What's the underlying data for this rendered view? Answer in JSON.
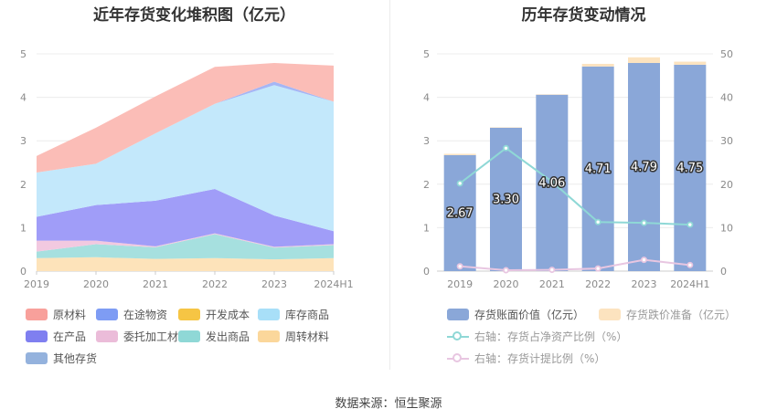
{
  "left_chart": {
    "title": "近年存货变化堆积图（亿元）",
    "legend": [
      {
        "label": "原材料",
        "color": "#f8a09b",
        "icon": "rect"
      },
      {
        "label": "在途物资",
        "color": "#7e9cf4",
        "icon": "rect"
      },
      {
        "label": "开发成本",
        "color": "#f6c544",
        "icon": "rect"
      },
      {
        "label": "库存商品",
        "color": "#a8dff8",
        "icon": "rect"
      },
      {
        "label": "在产品",
        "color": "#7f7ff0",
        "icon": "rect"
      },
      {
        "label": "委托加工材料",
        "color": "#ebbcd9",
        "icon": "rect"
      },
      {
        "label": "发出商品",
        "color": "#8fd8d6",
        "icon": "rect"
      },
      {
        "label": "周转材料",
        "color": "#fbd79b",
        "icon": "rect"
      },
      {
        "label": "其他存货",
        "color": "#94b2dd",
        "icon": "rect"
      }
    ]
  },
  "right_chart": {
    "title": "历年存货变动情况",
    "legend": [
      {
        "label": "存货账面价值（亿元）",
        "color": "#8aa7d8",
        "style": "rect"
      },
      {
        "label": "存货跌价准备（亿元）",
        "color": "#fce3bf",
        "style": "rect"
      },
      {
        "label": "右轴：存货占净资产比例（%）",
        "color": "#8fd8d6",
        "style": "line"
      },
      {
        "label": "右轴：存货计提比例（%）",
        "color": "#e8c6e1",
        "style": "line"
      }
    ]
  },
  "source": "数据来源：恒生聚源",
  "chart_data": [
    {
      "type": "area",
      "title": "近年存货变化堆积图（亿元）",
      "categories": [
        "2019",
        "2020",
        "2021",
        "2022",
        "2023",
        "2024H1"
      ],
      "ylim": [
        0,
        5
      ],
      "yticks": [
        0,
        1,
        2,
        3,
        4,
        5
      ],
      "stacked": true,
      "series": [
        {
          "name": "周转材料",
          "color": "#fde3ba",
          "values": [
            0.3,
            0.32,
            0.28,
            0.3,
            0.27,
            0.3
          ]
        },
        {
          "name": "发出商品",
          "color": "#a6e0df",
          "values": [
            0.15,
            0.3,
            0.27,
            0.55,
            0.27,
            0.3
          ]
        },
        {
          "name": "委托加工材料",
          "color": "#f2c9e0",
          "values": [
            0.25,
            0.08,
            0.02,
            0.02,
            0.02,
            0.02
          ]
        },
        {
          "name": "在产品",
          "color": "#a09df8",
          "values": [
            0.55,
            0.82,
            1.05,
            1.02,
            0.72,
            0.3
          ]
        },
        {
          "name": "库存商品",
          "color": "#c3e8fb",
          "values": [
            1.02,
            0.95,
            1.55,
            1.96,
            3.0,
            2.98
          ]
        },
        {
          "name": "在途物资",
          "color": "#a5b6f5",
          "values": [
            0.0,
            0.0,
            0.0,
            0.0,
            0.08,
            0.0
          ]
        },
        {
          "name": "原材料",
          "color": "#fbbdb7",
          "values": [
            0.38,
            0.83,
            0.85,
            0.85,
            0.43,
            0.83
          ]
        }
      ]
    },
    {
      "type": "bar",
      "title": "历年存货变动情况",
      "categories": [
        "2019",
        "2020",
        "2021",
        "2022",
        "2023",
        "2024H1"
      ],
      "ylim": [
        0,
        5
      ],
      "yticks": [
        0,
        1,
        2,
        3,
        4,
        5
      ],
      "y2lim": [
        0,
        50
      ],
      "y2ticks": [
        0,
        10,
        20,
        30,
        40,
        50
      ],
      "stacked": true,
      "series": [
        {
          "name": "存货账面价值（亿元）",
          "color": "#8aa7d8",
          "values": [
            2.67,
            3.3,
            4.06,
            4.71,
            4.79,
            4.75
          ],
          "labels": [
            "2.67",
            "3.30",
            "4.06",
            "4.71",
            "4.79",
            "4.75"
          ]
        },
        {
          "name": "存货跌价准备（亿元）",
          "color": "#fce3bf",
          "values": [
            0.03,
            0.01,
            0.01,
            0.06,
            0.13,
            0.07
          ]
        }
      ],
      "lines": [
        {
          "name": "右轴：存货占净资产比例（%）",
          "color": "#8fd8d6",
          "axis": "right",
          "values": [
            20.2,
            28.3,
            20.6,
            11.3,
            11.1,
            10.7
          ]
        },
        {
          "name": "右轴：存货计提比例（%）",
          "color": "#e8c6e1",
          "axis": "right",
          "values": [
            1.1,
            0.2,
            0.3,
            0.6,
            2.6,
            1.4
          ]
        }
      ]
    }
  ]
}
